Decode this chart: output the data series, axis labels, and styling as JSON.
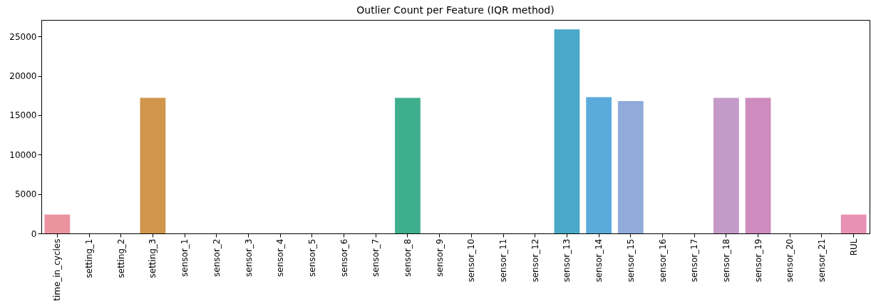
{
  "chart_data": {
    "type": "bar",
    "title": "Outlier Count per Feature (IQR method)",
    "categories": [
      "time_in_cycles",
      "setting_1",
      "setting_2",
      "setting_3",
      "sensor_1",
      "sensor_2",
      "sensor_3",
      "sensor_4",
      "sensor_5",
      "sensor_6",
      "sensor_7",
      "sensor_8",
      "sensor_9",
      "sensor_10",
      "sensor_11",
      "sensor_12",
      "sensor_13",
      "sensor_14",
      "sensor_15",
      "sensor_16",
      "sensor_17",
      "sensor_18",
      "sensor_19",
      "sensor_20",
      "sensor_21",
      "RUL"
    ],
    "values": [
      2400,
      0,
      0,
      17200,
      0,
      0,
      0,
      0,
      0,
      0,
      0,
      17200,
      0,
      0,
      0,
      0,
      25900,
      17300,
      16800,
      0,
      0,
      17200,
      17200,
      0,
      0,
      2400
    ],
    "colors": [
      "#ea939f",
      "#e69a7e",
      "#dc9f5c",
      "#d0964b",
      "#bda44a",
      "#a8aa4a",
      "#8fb04a",
      "#6cb44f",
      "#4fb66b",
      "#42b47e",
      "#40b286",
      "#3fae8c",
      "#40ad99",
      "#41aca5",
      "#43abb1",
      "#46aabd",
      "#4aa9c9",
      "#5aabdc",
      "#90abda",
      "#a3a5dc",
      "#b6a0d6",
      "#c49bc8",
      "#cd8bbe",
      "#d98ebc",
      "#e38fb6",
      "#e891b4"
    ],
    "ylim": [
      0,
      27100
    ],
    "yticks": [
      0,
      5000,
      10000,
      15000,
      20000,
      25000
    ],
    "grid": false,
    "legend": false
  }
}
